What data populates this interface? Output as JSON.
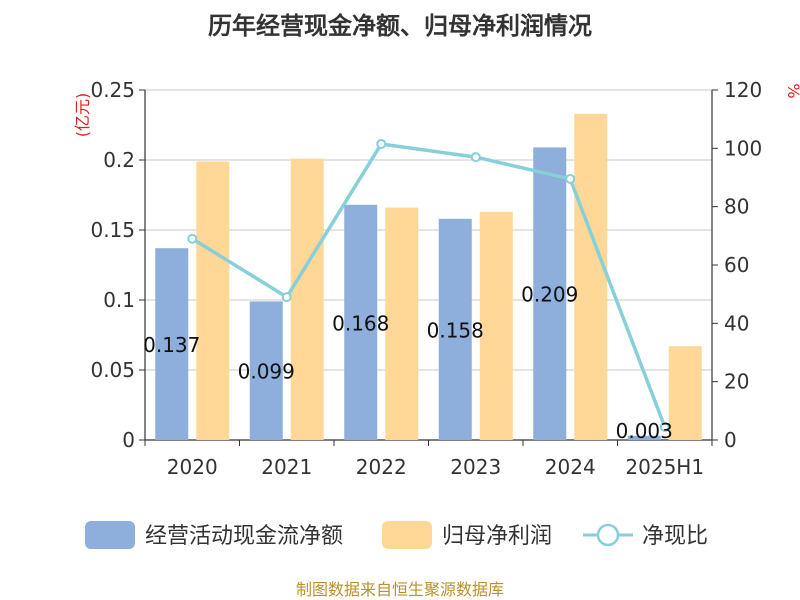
{
  "chart_data": {
    "type": "bar",
    "title": "历年经营现金净额、归母净利润情况",
    "y_left_unit": "(亿元)",
    "y_right_unit": "%",
    "categories": [
      "2020",
      "2021",
      "2022",
      "2023",
      "2024",
      "2025H1"
    ],
    "ylim_left": [
      0,
      0.25
    ],
    "ylim_right": [
      0,
      120
    ],
    "y_left_ticks": [
      "0",
      "0.05",
      "0.1",
      "0.15",
      "0.2",
      "0.25"
    ],
    "y_right_ticks": [
      "0",
      "20",
      "40",
      "60",
      "80",
      "100",
      "120"
    ],
    "grid": true,
    "legend_position": "bottom",
    "series": [
      {
        "name": "经营活动现金流净额",
        "type": "bar",
        "axis": "left",
        "color": "#8eaedc",
        "values": [
          0.137,
          0.099,
          0.168,
          0.158,
          0.209,
          0.003
        ],
        "data_labels": [
          "0.137",
          "0.099",
          "0.168",
          "0.158",
          "0.209",
          "0.003"
        ]
      },
      {
        "name": "归母净利润",
        "type": "bar",
        "axis": "left",
        "color": "#ffd897",
        "values": [
          0.199,
          0.201,
          0.166,
          0.163,
          0.233,
          0.067
        ]
      },
      {
        "name": "净现比",
        "type": "line",
        "axis": "right",
        "color": "#87d0d9",
        "values": [
          69,
          49,
          101.5,
          97,
          89.5,
          4.5
        ]
      }
    ],
    "source": "制图数据来自恒生聚源数据库"
  }
}
